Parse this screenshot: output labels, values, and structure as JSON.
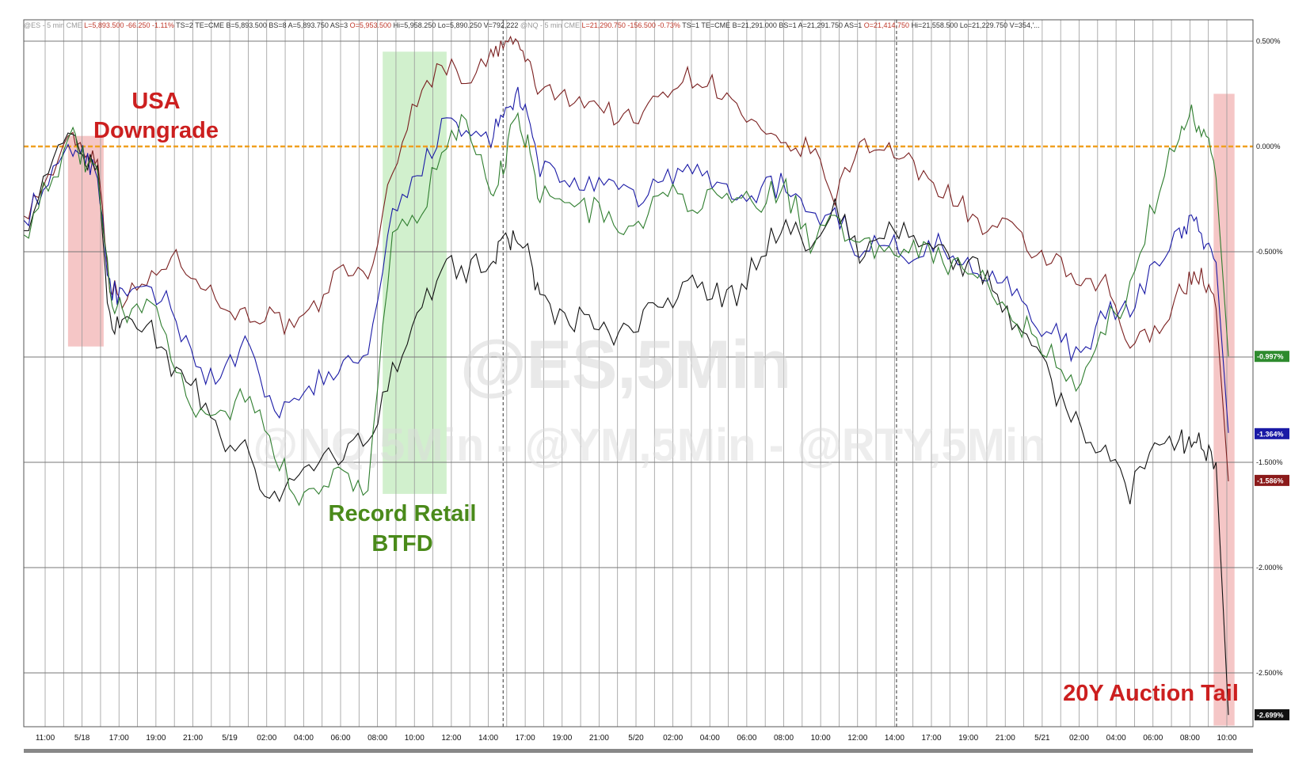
{
  "header": {
    "segments": [
      {
        "text": "@ES - 5 min  CME",
        "color": "#9a9a9a"
      },
      {
        "text": "L=5,893.500  -66.250  -1.11%",
        "color": "#c0392b"
      },
      {
        "text": "TS=2   TE=CME  B=5,893.500  BS=8    A=5,893.750  AS=3",
        "color": "#333333"
      },
      {
        "text": "O=5,953.500",
        "color": "#c0392b"
      },
      {
        "text": "Hi=5,958.250  Lo=5,890.250  V=792,222",
        "color": "#333333"
      },
      {
        "text": "@NQ - 5 min  CME",
        "color": "#9a9a9a"
      },
      {
        "text": "L=21,290.750  -156.500  -0.73%",
        "color": "#c0392b"
      },
      {
        "text": "TS=1   TE=CME  B=21,291.000  BS=1    A=21,291.750  AS=1",
        "color": "#333333"
      },
      {
        "text": "O=21,414.750",
        "color": "#c0392b"
      },
      {
        "text": "Hi=21,558.500  Lo=21,229.750  V=354,'...",
        "color": "#333333"
      }
    ]
  },
  "watermarks": {
    "main": "@ES,5Min",
    "secondary": "@NQ,5Min - @YM,5Min - @RTY,5Min"
  },
  "colors": {
    "es": "#7a1f1f",
    "nq": "#1a1aa6",
    "ym": "#111111",
    "rty": "#2e7d2e",
    "zero_line": "#f0a020",
    "red_band": "#f2b8b8",
    "green_band": "#c6ecc0",
    "ann_red": "#cc1f1f",
    "ann_green": "#4a8a1a"
  },
  "annotations": {
    "downgrade": [
      "USA",
      "Downgrade"
    ],
    "retail": [
      "Record Retail",
      "BTFD"
    ],
    "auction": "20Y Auction Tail"
  },
  "chart_data": {
    "type": "line",
    "ylabel_unit": "%",
    "ylim": [
      -2.75,
      0.5
    ],
    "ytick_values": [
      0.5,
      0.0,
      -0.5,
      -1.0,
      -1.5,
      -2.0,
      -2.5
    ],
    "ytick_labels": [
      "0.500%",
      "0.000%",
      "-0.500%",
      "",
      "-1.500%",
      "-2.000%",
      "-2.500%"
    ],
    "xtick_labels": [
      "11:00",
      "5/18",
      "17:00",
      "19:00",
      "21:00",
      "5/19",
      "02:00",
      "04:00",
      "06:00",
      "08:00",
      "10:00",
      "12:00",
      "14:00",
      "17:00",
      "19:00",
      "21:00",
      "5/20",
      "02:00",
      "04:00",
      "06:00",
      "08:00",
      "10:00",
      "12:00",
      "14:00",
      "17:00",
      "19:00",
      "21:00",
      "5/21",
      "02:00",
      "04:00",
      "06:00",
      "08:00",
      "10:00"
    ],
    "x_index_range": [
      0,
      100
    ],
    "series": [
      {
        "key": "es",
        "x": [
          0,
          2,
          4,
          5,
          6,
          7,
          8,
          10,
          12,
          14,
          16,
          18,
          20,
          22,
          24,
          26,
          28,
          30,
          32,
          34,
          36,
          38,
          39,
          40,
          41,
          42,
          44,
          46,
          48,
          50,
          52,
          54,
          56,
          58,
          60,
          62,
          64,
          66,
          68,
          70,
          72,
          74,
          76,
          78,
          80,
          82,
          84,
          86,
          88,
          90,
          92,
          94,
          95,
          96,
          97,
          98
        ],
        "values": [
          -0.33,
          -0.15,
          0.05,
          -0.02,
          -0.06,
          -0.65,
          -0.72,
          -0.65,
          -0.52,
          -0.6,
          -0.75,
          -0.8,
          -0.8,
          -0.88,
          -0.75,
          -0.55,
          -0.65,
          -0.1,
          0.22,
          0.4,
          0.32,
          0.42,
          0.48,
          0.5,
          0.4,
          0.25,
          0.24,
          0.22,
          0.15,
          0.12,
          0.27,
          0.33,
          0.3,
          0.18,
          0.05,
          -0.02,
          0.0,
          -0.25,
          0.02,
          0.0,
          -0.08,
          -0.18,
          -0.25,
          -0.4,
          -0.38,
          -0.5,
          -0.55,
          -0.68,
          -0.65,
          -0.95,
          -0.88,
          -0.7,
          -0.62,
          -0.62,
          -0.77,
          -1.59
        ]
      },
      {
        "key": "nq",
        "x": [
          0,
          2,
          4,
          5,
          6,
          7,
          8,
          10,
          12,
          14,
          16,
          18,
          20,
          22,
          24,
          26,
          28,
          30,
          32,
          34,
          36,
          38,
          39,
          40,
          41,
          42,
          44,
          46,
          48,
          50,
          52,
          54,
          56,
          58,
          60,
          62,
          64,
          66,
          68,
          70,
          72,
          74,
          76,
          78,
          80,
          82,
          84,
          86,
          88,
          90,
          92,
          94,
          95,
          96,
          97,
          98
        ],
        "values": [
          -0.35,
          -0.18,
          0.0,
          -0.05,
          -0.12,
          -0.68,
          -0.72,
          -0.7,
          -0.75,
          -1.05,
          -1.1,
          -0.95,
          -1.22,
          -1.25,
          -1.1,
          -1.05,
          -1.0,
          -0.35,
          -0.15,
          0.1,
          0.05,
          0.05,
          0.12,
          0.25,
          0.12,
          -0.1,
          -0.15,
          -0.2,
          -0.2,
          -0.25,
          -0.15,
          -0.12,
          -0.15,
          -0.25,
          -0.2,
          -0.18,
          -0.35,
          -0.3,
          -0.5,
          -0.45,
          -0.5,
          -0.45,
          -0.55,
          -0.6,
          -0.6,
          -0.85,
          -0.9,
          -1.0,
          -0.8,
          -0.78,
          -0.55,
          -0.42,
          -0.35,
          -0.45,
          -0.55,
          -1.36
        ]
      },
      {
        "key": "ym",
        "x": [
          0,
          2,
          4,
          5,
          6,
          7,
          8,
          10,
          12,
          14,
          16,
          18,
          20,
          22,
          24,
          26,
          28,
          30,
          32,
          34,
          36,
          38,
          39,
          40,
          41,
          42,
          44,
          46,
          48,
          50,
          52,
          54,
          56,
          58,
          60,
          62,
          64,
          66,
          68,
          70,
          72,
          74,
          76,
          78,
          80,
          82,
          84,
          86,
          88,
          90,
          92,
          94,
          95,
          96,
          97,
          98
        ],
        "values": [
          -0.4,
          -0.1,
          0.05,
          -0.05,
          -0.15,
          -0.82,
          -0.85,
          -0.82,
          -1.05,
          -1.15,
          -1.4,
          -1.45,
          -1.7,
          -1.55,
          -1.5,
          -1.45,
          -1.4,
          -1.05,
          -0.85,
          -0.55,
          -0.6,
          -0.52,
          -0.48,
          -0.42,
          -0.5,
          -0.72,
          -0.85,
          -0.8,
          -0.95,
          -0.82,
          -0.75,
          -0.65,
          -0.7,
          -0.72,
          -0.5,
          -0.35,
          -0.48,
          -0.3,
          -0.5,
          -0.42,
          -0.38,
          -0.5,
          -0.55,
          -0.6,
          -0.8,
          -0.9,
          -1.18,
          -1.35,
          -1.45,
          -1.65,
          -1.38,
          -1.4,
          -1.4,
          -1.42,
          -1.5,
          -2.7
        ]
      },
      {
        "key": "rty",
        "x": [
          0,
          2,
          4,
          5,
          6,
          7,
          8,
          10,
          12,
          14,
          16,
          18,
          20,
          22,
          24,
          26,
          28,
          30,
          32,
          34,
          36,
          38,
          39,
          40,
          41,
          42,
          44,
          46,
          48,
          50,
          52,
          54,
          56,
          58,
          60,
          62,
          64,
          66,
          68,
          70,
          72,
          74,
          76,
          78,
          80,
          82,
          84,
          86,
          88,
          90,
          92,
          94,
          95,
          96,
          97,
          98
        ],
        "values": [
          -0.42,
          -0.15,
          0.02,
          -0.08,
          -0.15,
          -0.7,
          -0.78,
          -0.75,
          -0.95,
          -1.25,
          -1.3,
          -1.15,
          -1.4,
          -1.65,
          -1.6,
          -1.55,
          -1.62,
          -0.4,
          -0.35,
          -0.05,
          0.12,
          -0.2,
          -0.1,
          0.18,
          0.0,
          -0.22,
          -0.28,
          -0.3,
          -0.35,
          -0.4,
          -0.2,
          -0.3,
          -0.2,
          -0.3,
          -0.25,
          -0.2,
          -0.45,
          -0.3,
          -0.5,
          -0.48,
          -0.45,
          -0.5,
          -0.58,
          -0.65,
          -0.75,
          -0.9,
          -1.0,
          -1.15,
          -0.85,
          -0.7,
          -0.25,
          0.05,
          0.15,
          0.1,
          -0.15,
          -0.997
        ]
      }
    ],
    "end_labels": [
      {
        "key": "rty",
        "value": -0.997,
        "text": "-0.997%",
        "bg": "#2e8b2e"
      },
      {
        "key": "nq",
        "value": -1.364,
        "text": "-1.364%",
        "bg": "#1a1aa6"
      },
      {
        "key": "es",
        "value": -1.586,
        "text": "-1.586%",
        "bg": "#8b1a1a"
      },
      {
        "key": "ym",
        "value": -2.699,
        "text": "-2.699%",
        "bg": "#111111"
      }
    ],
    "bands": [
      {
        "key": "downgrade",
        "x_from": 3.6,
        "x_to": 6.5,
        "y_from": -0.95,
        "y_to": 0.05,
        "color": "red"
      },
      {
        "key": "retail",
        "x_from": 29.2,
        "x_to": 34.4,
        "y_from": -1.65,
        "y_to": 0.45,
        "color": "green"
      },
      {
        "key": "auction",
        "x_from": 96.8,
        "x_to": 98.5,
        "y_from": -2.75,
        "y_to": 0.25,
        "color": "red"
      }
    ],
    "session_breaks": [
      39,
      71
    ]
  }
}
